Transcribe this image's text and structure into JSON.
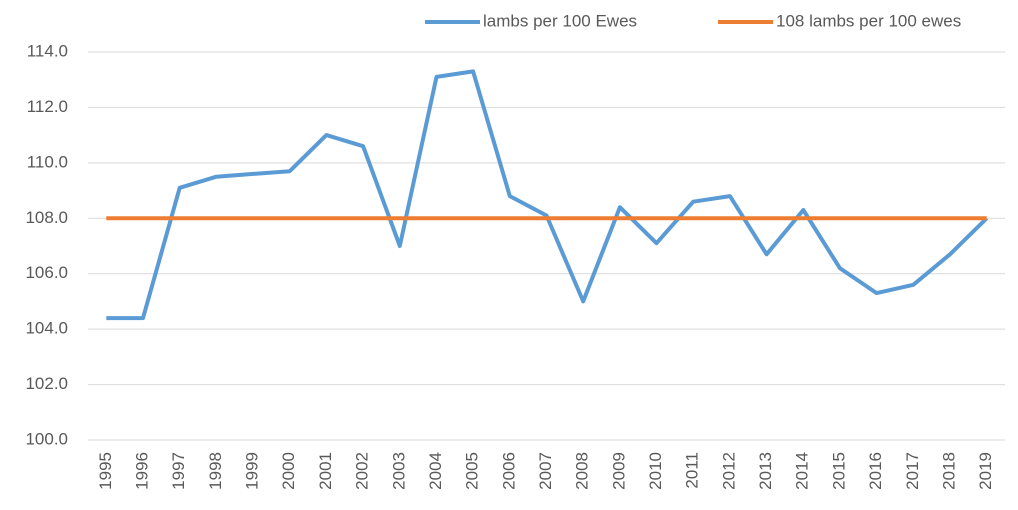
{
  "chart_data": {
    "type": "line",
    "categories": [
      "1995",
      "1996",
      "1997",
      "1998",
      "1999",
      "2000",
      "2001",
      "2002",
      "2003",
      "2004",
      "2005",
      "2006",
      "2007",
      "2008",
      "2009",
      "2010",
      "2011",
      "2012",
      "2013",
      "2014",
      "2015",
      "2016",
      "2017",
      "2018",
      "2019"
    ],
    "series": [
      {
        "name": "lambs per 100 Ewes",
        "color": "#5b9bd5",
        "values": [
          104.4,
          104.4,
          109.1,
          109.5,
          109.6,
          109.7,
          111.0,
          110.6,
          107.0,
          113.1,
          113.3,
          108.8,
          108.1,
          105.0,
          108.4,
          107.1,
          108.6,
          108.8,
          106.7,
          108.3,
          106.2,
          105.3,
          105.6,
          106.7,
          108.0
        ]
      },
      {
        "name": "108 lambs per 100 ewes",
        "color": "#ed7d31",
        "values": [
          108,
          108,
          108,
          108,
          108,
          108,
          108,
          108,
          108,
          108,
          108,
          108,
          108,
          108,
          108,
          108,
          108,
          108,
          108,
          108,
          108,
          108,
          108,
          108,
          108
        ]
      }
    ],
    "ylim": [
      100,
      114
    ],
    "yticks": [
      {
        "value": 100,
        "label": "100.0"
      },
      {
        "value": 102,
        "label": "102.0"
      },
      {
        "value": 104,
        "label": "104.0"
      },
      {
        "value": 106,
        "label": "106.0"
      },
      {
        "value": 108,
        "label": "108.0"
      },
      {
        "value": 110,
        "label": "110.0"
      },
      {
        "value": 112,
        "label": "112.0"
      },
      {
        "value": 114,
        "label": "114.0"
      }
    ],
    "grid": true,
    "legend": "top-right"
  }
}
